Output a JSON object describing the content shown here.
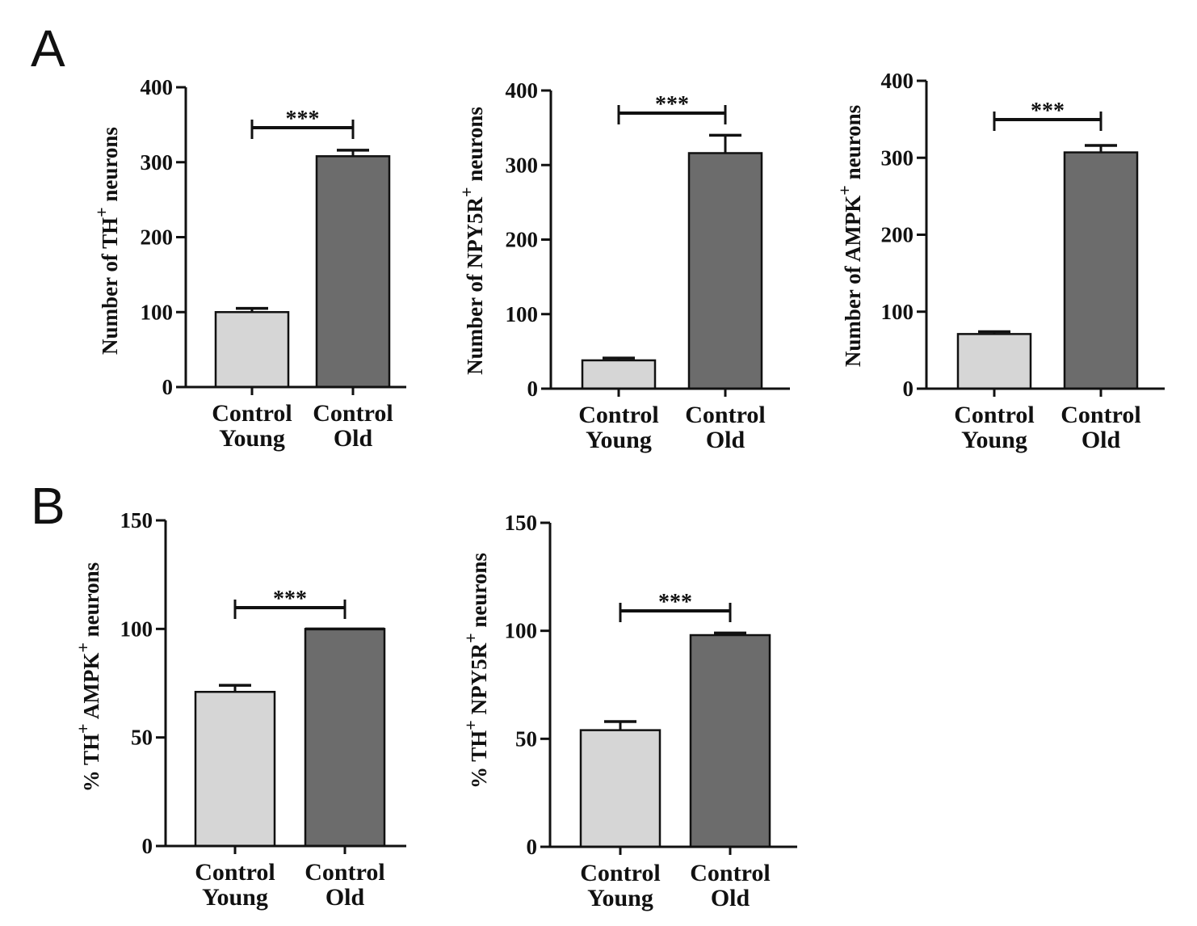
{
  "panels": [
    {
      "letter": "A"
    },
    {
      "letter": "B"
    }
  ],
  "chart_data": [
    {
      "type": "bar",
      "panel": "A",
      "categories": [
        [
          "Control",
          "Young"
        ],
        [
          "Control",
          "Old"
        ]
      ],
      "values": [
        100,
        308
      ],
      "errors": [
        5,
        8
      ],
      "colors": [
        "#d6d6d6",
        "#6c6c6c"
      ],
      "ylabel": {
        "pre": "Number of TH",
        "sup": "+",
        "post": " neurons"
      },
      "ylim": [
        0,
        400
      ],
      "yticks": [
        0,
        100,
        200,
        300,
        400
      ],
      "significance": "***"
    },
    {
      "type": "bar",
      "panel": "A",
      "categories": [
        [
          "Control",
          "Young"
        ],
        [
          "Control",
          "Old"
        ]
      ],
      "values": [
        38,
        316
      ],
      "errors": [
        3,
        24
      ],
      "colors": [
        "#d6d6d6",
        "#6c6c6c"
      ],
      "ylabel": {
        "pre": "Number of NPY5R",
        "sup": "+",
        "post": " neurons"
      },
      "ylim": [
        0,
        400
      ],
      "yticks": [
        0,
        100,
        200,
        300,
        400
      ],
      "significance": "***"
    },
    {
      "type": "bar",
      "panel": "A",
      "categories": [
        [
          "Control",
          "Young"
        ],
        [
          "Control",
          "Old"
        ]
      ],
      "values": [
        71,
        307
      ],
      "errors": [
        3,
        9
      ],
      "colors": [
        "#d6d6d6",
        "#6c6c6c"
      ],
      "ylabel": {
        "pre": "Number of AMPK",
        "sup": "+",
        "post": " neurons"
      },
      "ylim": [
        0,
        400
      ],
      "yticks": [
        0,
        100,
        200,
        300,
        400
      ],
      "significance": "***"
    },
    {
      "type": "bar",
      "panel": "B",
      "categories": [
        [
          "Control",
          "Young"
        ],
        [
          "Control",
          "Old"
        ]
      ],
      "values": [
        71,
        100
      ],
      "errors": [
        3,
        0
      ],
      "colors": [
        "#d6d6d6",
        "#6c6c6c"
      ],
      "ylabel": {
        "pre": "% TH",
        "sup": "+",
        "mid": " AMPK",
        "sup2": "+",
        "post": " neurons"
      },
      "ylim": [
        0,
        150
      ],
      "yticks": [
        0,
        50,
        100,
        150
      ],
      "significance": "***"
    },
    {
      "type": "bar",
      "panel": "B",
      "categories": [
        [
          "Control",
          "Young"
        ],
        [
          "Control",
          "Old"
        ]
      ],
      "values": [
        54,
        98
      ],
      "errors": [
        4,
        1
      ],
      "colors": [
        "#d6d6d6",
        "#6c6c6c"
      ],
      "ylabel": {
        "pre": "% TH",
        "sup": "+",
        "mid": " NPY5R",
        "sup2": "+",
        "post": " neurons"
      },
      "ylim": [
        0,
        150
      ],
      "yticks": [
        0,
        50,
        100,
        150
      ],
      "significance": "***"
    }
  ]
}
